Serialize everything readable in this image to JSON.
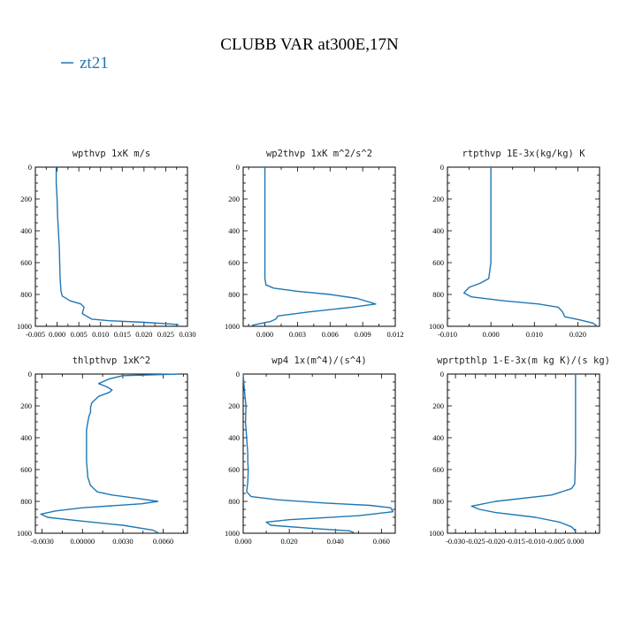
{
  "title": "CLUBB VAR at300E,17N",
  "legend": {
    "label": "zt21",
    "color": "#1f77b4"
  },
  "chart_data": [
    {
      "type": "line",
      "title": "wpthvp  1xK m/s",
      "xlim": [
        -0.005,
        0.03
      ],
      "ylim": [
        0,
        1000
      ],
      "y_inverted": true,
      "xticks": [
        -0.005,
        0.0,
        0.005,
        0.01,
        0.015,
        0.02,
        0.025,
        0.03
      ],
      "xtick_labels": [
        "-0.005",
        "0.000",
        "0.005",
        "0.010",
        "0.015",
        "0.020",
        "0.025",
        "0.030"
      ],
      "yticks": [
        0,
        200,
        400,
        600,
        800,
        1000
      ],
      "ytick_labels": [
        "0",
        "200",
        "400",
        "600",
        "800",
        "1000"
      ],
      "series": [
        {
          "name": "zt21",
          "color": "#1f77b4",
          "x": [
            -0.0002,
            -0.0002,
            0.0,
            0.0001,
            0.0003,
            0.0005,
            0.0006,
            0.0007,
            0.0009,
            0.0012,
            0.003,
            0.0055,
            0.0062,
            0.006,
            0.0058,
            0.007,
            0.008,
            0.012,
            0.02,
            0.026,
            0.028
          ],
          "y": [
            0,
            100,
            200,
            300,
            400,
            500,
            600,
            700,
            780,
            810,
            840,
            860,
            880,
            900,
            920,
            940,
            955,
            965,
            975,
            985,
            990
          ]
        }
      ]
    },
    {
      "type": "line",
      "title": "wp2thvp  1xK m^2/s^2",
      "xlim": [
        -0.002,
        0.012
      ],
      "ylim": [
        0,
        1000
      ],
      "y_inverted": true,
      "xticks": [
        0.0,
        0.003,
        0.006,
        0.009,
        0.012
      ],
      "xtick_labels": [
        "0.000",
        "0.003",
        "0.006",
        "0.009",
        "0.012"
      ],
      "yticks": [
        0,
        200,
        400,
        600,
        800,
        1000
      ],
      "ytick_labels": [
        "0",
        "200",
        "400",
        "600",
        "800",
        "1000"
      ],
      "series": [
        {
          "name": "zt21",
          "color": "#1f77b4",
          "x": [
            0.0,
            0.0,
            0.0,
            0.0,
            0.0,
            0.0,
            0.0,
            0.0,
            0.0001,
            0.0008,
            0.003,
            0.006,
            0.0085,
            0.0102,
            0.008,
            0.004,
            0.0012,
            0.001,
            0.0005,
            -0.0006,
            -0.0012
          ],
          "y": [
            0,
            100,
            200,
            300,
            400,
            500,
            600,
            700,
            740,
            760,
            780,
            800,
            825,
            860,
            880,
            910,
            935,
            955,
            970,
            985,
            995
          ]
        }
      ]
    },
    {
      "type": "line",
      "title": "rtpthvp  1E-3x(kg/kg) K",
      "xlim": [
        -0.01,
        0.025
      ],
      "ylim": [
        0,
        1000
      ],
      "y_inverted": true,
      "xticks": [
        -0.01,
        0.0,
        0.01,
        0.02
      ],
      "xtick_labels": [
        "-0.010",
        "0.000",
        "0.010",
        "0.020"
      ],
      "yticks": [
        0,
        200,
        400,
        600,
        800,
        1000
      ],
      "ytick_labels": [
        "0",
        "200",
        "400",
        "600",
        "800",
        "1000"
      ],
      "series": [
        {
          "name": "zt21",
          "color": "#1f77b4",
          "x": [
            0.0,
            0.0,
            0.0,
            0.0,
            0.0,
            0.0,
            0.0,
            -0.0005,
            -0.0025,
            -0.005,
            -0.0062,
            -0.0045,
            0.003,
            0.011,
            0.0155,
            0.0165,
            0.017,
            0.0205,
            0.0235,
            0.024,
            0.0243
          ],
          "y": [
            0,
            100,
            200,
            300,
            400,
            500,
            600,
            700,
            730,
            755,
            790,
            815,
            840,
            860,
            880,
            910,
            940,
            960,
            980,
            990,
            995
          ]
        }
      ]
    },
    {
      "type": "line",
      "title": "thlpthvp  1xK^2",
      "xlim": [
        -0.0035,
        0.0078
      ],
      "ylim": [
        0,
        1000
      ],
      "y_inverted": true,
      "xticks": [
        -0.003,
        0.0,
        0.003,
        0.006
      ],
      "xtick_labels": [
        "-0.0030",
        "0.00000",
        "0.0030",
        "0.0060"
      ],
      "yticks": [
        0,
        200,
        400,
        600,
        800,
        1000
      ],
      "ytick_labels": [
        "0",
        "200",
        "400",
        "600",
        "800",
        "1000"
      ],
      "series": [
        {
          "name": "zt21",
          "color": "#1f77b4",
          "x": [
            0.0072,
            0.003,
            0.002,
            0.0012,
            0.0018,
            0.0022,
            0.002,
            0.0012,
            0.0007,
            0.0006,
            0.0006,
            0.0005,
            0.0004,
            0.0003,
            0.0003,
            0.0003,
            0.0003,
            0.0004,
            0.0006,
            0.0011,
            0.0022,
            0.004,
            0.0056,
            0.0044,
            0.0,
            -0.002,
            -0.0031,
            -0.0026,
            -0.0005,
            0.003,
            0.0052,
            0.0056
          ],
          "y": [
            0,
            10,
            30,
            60,
            80,
            100,
            115,
            140,
            180,
            210,
            240,
            260,
            300,
            350,
            400,
            450,
            550,
            650,
            700,
            740,
            760,
            780,
            800,
            815,
            840,
            860,
            880,
            900,
            920,
            950,
            980,
            995
          ]
        }
      ]
    },
    {
      "type": "line",
      "title": "wp4  1x(m^4)/(s^4)",
      "xlim": [
        0.0,
        0.066
      ],
      "ylim": [
        0,
        1000
      ],
      "y_inverted": true,
      "xticks": [
        0.0,
        0.02,
        0.04,
        0.06
      ],
      "xtick_labels": [
        "0.000",
        "0.020",
        "0.040",
        "0.060"
      ],
      "yticks": [
        0,
        200,
        400,
        600,
        800,
        1000
      ],
      "ytick_labels": [
        "0",
        "200",
        "400",
        "600",
        "800",
        "1000"
      ],
      "series": [
        {
          "name": "zt21",
          "color": "#1f77b4",
          "x": [
            0.0,
            0.0005,
            0.0012,
            0.001,
            0.0015,
            0.002,
            0.002,
            0.0022,
            0.002,
            0.0015,
            0.0035,
            0.015,
            0.035,
            0.055,
            0.064,
            0.065,
            0.05,
            0.02,
            0.01,
            0.012,
            0.03,
            0.046,
            0.048
          ],
          "y": [
            0,
            100,
            200,
            300,
            400,
            500,
            550,
            600,
            680,
            740,
            770,
            790,
            810,
            825,
            840,
            865,
            890,
            915,
            930,
            950,
            970,
            985,
            995
          ]
        }
      ]
    },
    {
      "type": "line",
      "title": "wprtpthlp  1-E-3x(m kg K)/(s kg)",
      "xlim": [
        -0.032,
        0.006
      ],
      "ylim": [
        0,
        1000
      ],
      "y_inverted": true,
      "xticks": [
        -0.03,
        -0.025,
        -0.02,
        -0.015,
        -0.01,
        -0.005,
        0.0
      ],
      "xtick_labels": [
        "-0.030",
        "-0.025",
        "-0.020",
        "-0.015",
        "-0.010",
        "-0.005",
        "0.000"
      ],
      "yticks": [
        0,
        200,
        400,
        600,
        800,
        1000
      ],
      "ytick_labels": [
        "0",
        "200",
        "400",
        "600",
        "800",
        "1000"
      ],
      "series": [
        {
          "name": "zt21",
          "color": "#1f77b4",
          "x": [
            0.0,
            0.0,
            0.0,
            0.0,
            0.0,
            -0.0002,
            -0.001,
            -0.006,
            -0.02,
            -0.026,
            -0.024,
            -0.02,
            -0.01,
            -0.004,
            -0.001,
            -0.0002,
            0.0
          ],
          "y": [
            0,
            100,
            200,
            300,
            500,
            690,
            720,
            760,
            800,
            830,
            850,
            870,
            900,
            930,
            960,
            980,
            995
          ]
        }
      ]
    }
  ]
}
